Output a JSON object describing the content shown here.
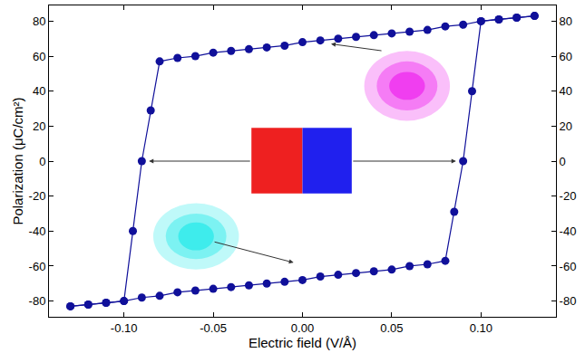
{
  "chart_data": {
    "type": "line",
    "x_label": "Electric field (V/Å)",
    "y_label": "Polarization (μC/cm²)",
    "marker": "circle",
    "line_style": "solid",
    "grid": false,
    "color": "#10109a",
    "xlim": [
      -0.142,
      0.142
    ],
    "ylim": [
      -89,
      89
    ],
    "xticks": [
      {
        "value": -0.1,
        "label": "-0.10"
      },
      {
        "value": -0.05,
        "label": "-0.05"
      },
      {
        "value": 0,
        "label": "0.00"
      },
      {
        "value": 0.05,
        "label": "0.05"
      },
      {
        "value": 0.1,
        "label": "0.10"
      }
    ],
    "yticks": [
      -80,
      -60,
      -40,
      -20,
      0,
      20,
      40,
      60,
      80
    ],
    "series": [
      {
        "x": [
          0.13,
          0.12,
          0.11,
          0.1,
          0.09,
          0.08,
          0.07,
          0.06,
          0.05,
          0.04,
          0.03,
          0.02,
          0.01,
          0.0,
          -0.01,
          -0.02,
          -0.03,
          -0.04,
          -0.05,
          -0.06,
          -0.07,
          -0.08,
          -0.085,
          -0.09,
          -0.095,
          -0.1,
          -0.11,
          -0.12,
          -0.13
        ],
        "values": [
          83,
          82,
          81,
          80,
          78,
          77,
          75,
          74,
          73,
          72,
          71,
          70,
          69,
          68,
          66,
          65,
          64,
          63,
          62,
          60,
          59,
          57,
          29,
          0,
          -40,
          -80,
          -81,
          -82,
          -83
        ]
      },
      {
        "x": [
          -0.13,
          -0.12,
          -0.11,
          -0.1,
          -0.09,
          -0.08,
          -0.07,
          -0.06,
          -0.05,
          -0.04,
          -0.03,
          -0.02,
          -0.01,
          0.0,
          0.01,
          0.02,
          0.03,
          0.04,
          0.05,
          0.06,
          0.07,
          0.08,
          0.085,
          0.09,
          0.095,
          0.1,
          0.11,
          0.12,
          0.13
        ],
        "values": [
          -83,
          -82,
          -81,
          -80,
          -78,
          -77,
          -75,
          -74,
          -73,
          -72,
          -71,
          -70,
          -69,
          -68,
          -66,
          -65,
          -64,
          -63,
          -62,
          -60,
          -59,
          -57,
          -29,
          0,
          40,
          80,
          81,
          82,
          83
        ]
      }
    ]
  }
}
